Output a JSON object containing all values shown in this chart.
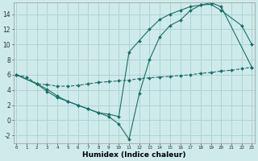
{
  "bg_color": "#ceeaea",
  "grid_color": "#aed4d4",
  "line_color": "#1a6e6a",
  "line1_x": [
    0,
    1,
    2,
    3,
    4,
    5,
    6,
    7,
    8,
    9,
    10,
    11,
    12,
    13,
    14,
    15,
    16,
    17,
    18,
    19,
    20,
    21,
    22,
    23
  ],
  "line1_y": [
    6.0,
    5.7,
    4.8,
    4.7,
    4.5,
    4.5,
    4.6,
    4.8,
    5.0,
    5.1,
    5.2,
    5.3,
    5.5,
    5.6,
    5.7,
    5.8,
    5.9,
    6.0,
    6.2,
    6.3,
    6.5,
    6.6,
    6.8,
    7.0
  ],
  "line2_x": [
    0,
    2,
    3,
    4,
    5,
    6,
    7,
    8,
    9,
    10,
    11,
    12,
    13,
    14,
    15,
    16,
    17,
    18,
    19,
    20,
    23
  ],
  "line2_y": [
    6.0,
    4.8,
    4.1,
    3.2,
    2.5,
    2.0,
    1.5,
    1.0,
    0.5,
    -0.5,
    -2.5,
    3.5,
    8.0,
    11.0,
    12.5,
    13.2,
    14.5,
    15.2,
    15.5,
    15.0,
    7.0
  ],
  "line3_x": [
    0,
    2,
    3,
    4,
    5,
    6,
    7,
    8,
    9,
    10,
    11,
    12,
    13,
    14,
    15,
    16,
    17,
    18,
    19,
    20,
    22,
    23
  ],
  "line3_y": [
    6.0,
    4.8,
    3.8,
    3.0,
    2.5,
    2.0,
    1.5,
    1.0,
    0.8,
    0.5,
    9.0,
    10.5,
    12.0,
    13.3,
    14.0,
    14.5,
    15.0,
    15.2,
    15.3,
    14.5,
    12.5,
    10.0
  ],
  "xlim": [
    0,
    23
  ],
  "ylim": [
    -3,
    15.5
  ],
  "yticks": [
    -2,
    0,
    2,
    4,
    6,
    8,
    10,
    12,
    14
  ],
  "xticks": [
    0,
    1,
    2,
    3,
    4,
    5,
    6,
    7,
    8,
    9,
    10,
    11,
    12,
    13,
    14,
    15,
    16,
    17,
    18,
    19,
    20,
    21,
    22,
    23
  ],
  "xlabel": "Humidex (Indice chaleur)",
  "xlabel_fontsize": 6.5
}
